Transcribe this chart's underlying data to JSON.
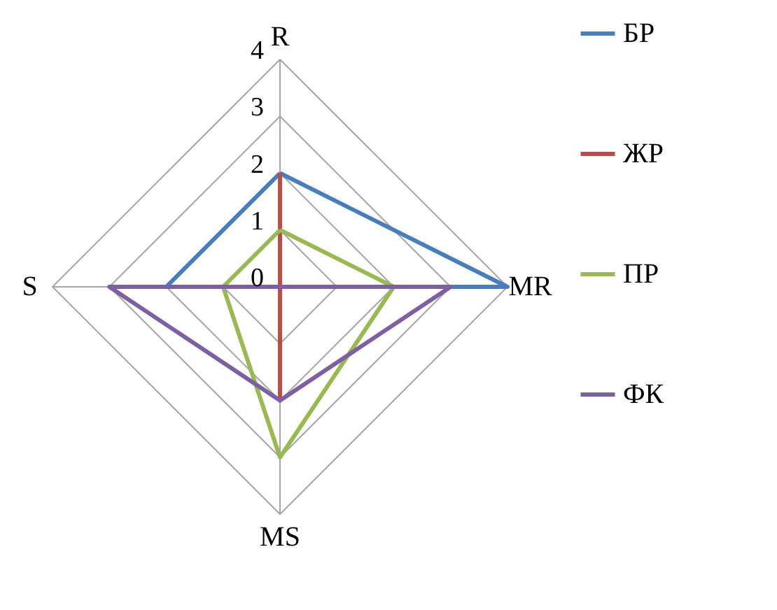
{
  "chart_data": {
    "type": "radar",
    "categories": [
      "R",
      "MR",
      "MS",
      "S"
    ],
    "series": [
      {
        "name": "БР",
        "color": "#4a7ebb",
        "values": [
          2,
          4,
          0,
          2
        ]
      },
      {
        "name": "ЖР",
        "color": "#be4b48",
        "values": [
          2,
          0,
          2,
          0
        ]
      },
      {
        "name": "ПР",
        "color": "#98b954",
        "values": [
          1,
          2,
          3,
          1
        ]
      },
      {
        "name": "ФК",
        "color": "#7d60a0",
        "values": [
          0,
          3,
          2,
          3
        ]
      }
    ],
    "ylim": [
      0,
      4
    ],
    "yticks": [
      0,
      1,
      2,
      3,
      4
    ],
    "grid": true,
    "legend": "right",
    "marker": "none",
    "line_style": "solid"
  }
}
